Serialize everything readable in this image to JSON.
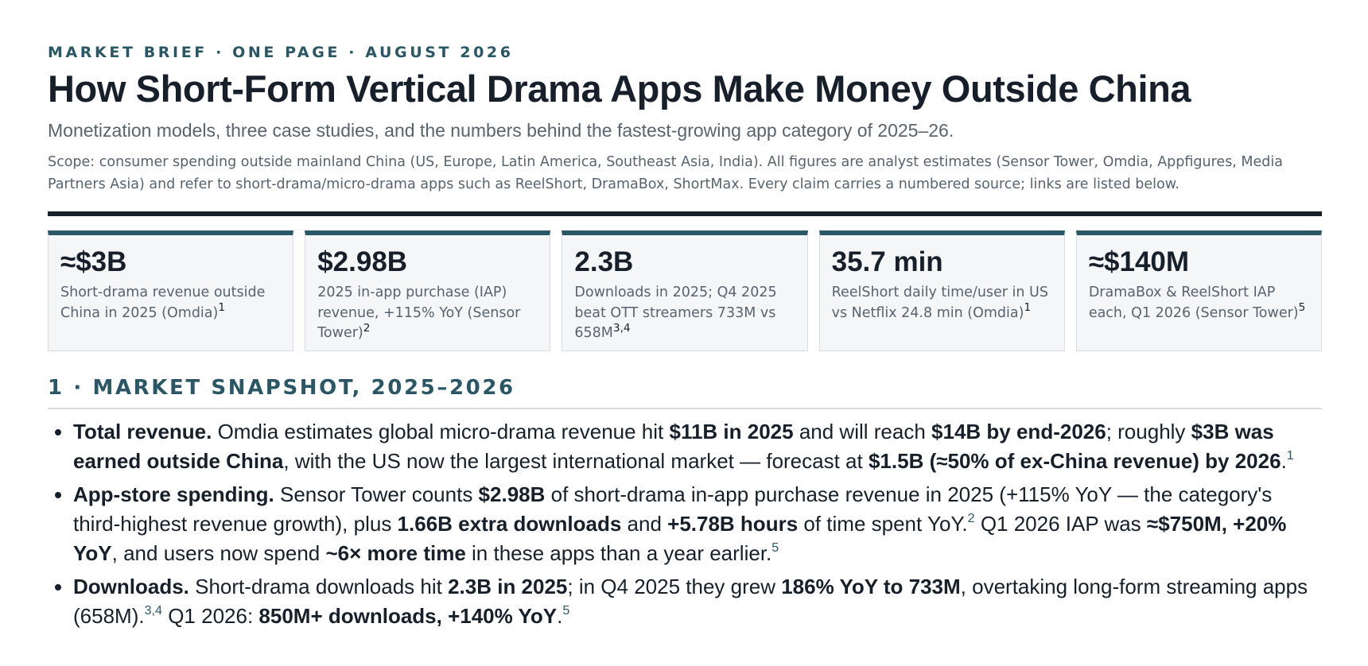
{
  "header": {
    "kicker": "MARKET BRIEF · ONE PAGE · AUGUST 2026",
    "title": "How Short-Form Vertical Drama Apps Make Money Outside China",
    "subtitle": "Monetization models, three case studies, and the numbers behind the fastest-growing app category of 2025–26.",
    "scope": "Scope: consumer spending outside mainland China (US, Europe, Latin America, Southeast Asia, India). All figures are analyst estimates (Sensor Tower, Omdia, Appfigures, Media Partners Asia) and refer to short-drama/micro-drama apps such as ReelShort, DramaBox, ShortMax. Every claim carries a numbered source; links are listed below."
  },
  "stats": [
    {
      "value": "≈$3B",
      "desc": "Short-drama revenue outside China in 2025 (Omdia)",
      "ref": "1"
    },
    {
      "value": "$2.98B",
      "desc": "2025 in-app purchase (IAP) revenue, +115% YoY (Sensor Tower)",
      "ref": "2"
    },
    {
      "value": "2.3B",
      "desc": "Downloads in 2025; Q4 2025 beat OTT streamers 733M vs 658M",
      "ref": "3,4"
    },
    {
      "value": "35.7 min",
      "desc": "ReelShort daily time/user in US vs Netflix 24.8 min (Omdia)",
      "ref": "1"
    },
    {
      "value": "≈$140M",
      "desc": "DramaBox & ReelShort IAP each, Q1 2026 (Sensor Tower)",
      "ref": "5"
    }
  ],
  "section1": {
    "heading": "1 · MARKET SNAPSHOT, 2025–2026",
    "bullets": [
      {
        "lead": "Total revenue.",
        "parts": [
          {
            "t": " Omdia estimates global micro-drama revenue hit "
          },
          {
            "t": "$11B in 2025",
            "b": true
          },
          {
            "t": " and will reach "
          },
          {
            "t": "$14B by end-2026",
            "b": true
          },
          {
            "t": "; roughly "
          },
          {
            "t": "$3B was earned outside China",
            "b": true
          },
          {
            "t": ", with the US now the largest international market — forecast at "
          },
          {
            "t": "$1.5B (≈50% of ex-China revenue) by 2026",
            "b": true
          },
          {
            "t": "."
          },
          {
            "t": "1",
            "sup": true
          }
        ]
      },
      {
        "lead": "App-store spending.",
        "parts": [
          {
            "t": " Sensor Tower counts "
          },
          {
            "t": "$2.98B",
            "b": true
          },
          {
            "t": " of short-drama in-app purchase revenue in 2025 (+115% YoY — the category's third-highest revenue growth), plus "
          },
          {
            "t": "1.66B extra downloads",
            "b": true
          },
          {
            "t": " and "
          },
          {
            "t": "+5.78B hours",
            "b": true
          },
          {
            "t": " of time spent YoY."
          },
          {
            "t": "2",
            "sup": true
          },
          {
            "t": " Q1 2026 IAP was "
          },
          {
            "t": "≈$750M, +20% YoY",
            "b": true
          },
          {
            "t": ", and users now spend "
          },
          {
            "t": "~6× more time",
            "b": true
          },
          {
            "t": " in these apps than a year earlier."
          },
          {
            "t": "5",
            "sup": true
          }
        ]
      },
      {
        "lead": "Downloads.",
        "parts": [
          {
            "t": " Short-drama downloads hit "
          },
          {
            "t": "2.3B in 2025",
            "b": true
          },
          {
            "t": "; in Q4 2025 they grew "
          },
          {
            "t": "186% YoY to 733M",
            "b": true
          },
          {
            "t": ", overtaking long-form streaming apps (658M)."
          },
          {
            "t": "3,4",
            "sup": true
          },
          {
            "t": " Q1 2026: "
          },
          {
            "t": "850M+ downloads, +140% YoY",
            "b": true
          },
          {
            "t": "."
          },
          {
            "t": "5",
            "sup": true
          }
        ]
      }
    ]
  }
}
